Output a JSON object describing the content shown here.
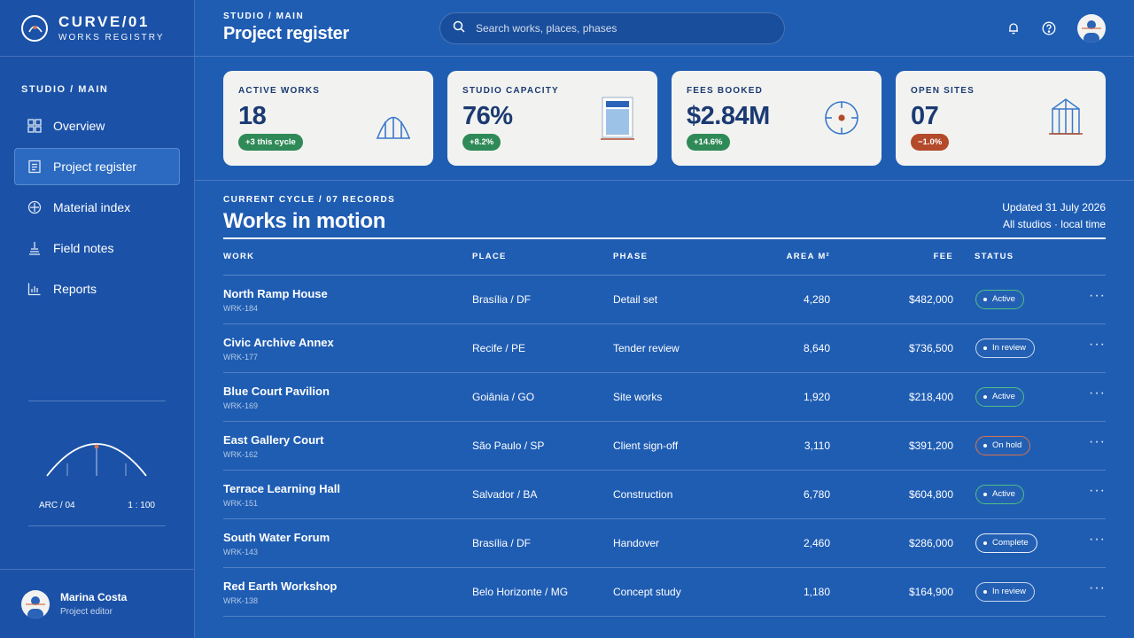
{
  "brand": {
    "title": "CURVE/01",
    "subtitle": "WORKS REGISTRY"
  },
  "sidebar": {
    "section": "STUDIO / MAIN",
    "items": [
      {
        "label": "Overview",
        "icon": "grid-icon"
      },
      {
        "label": "Project register",
        "icon": "document-icon",
        "active": true
      },
      {
        "label": "Material index",
        "icon": "crosshair-circle-icon"
      },
      {
        "label": "Field notes",
        "icon": "stack-icon"
      },
      {
        "label": "Reports",
        "icon": "bar-chart-icon"
      }
    ],
    "arc_widget": {
      "left_label": "ARC / 04",
      "right_label": "1 : 100"
    },
    "user": {
      "name": "Marina Costa",
      "role": "Project editor"
    }
  },
  "header": {
    "breadcrumb": "STUDIO / MAIN",
    "title": "Project register",
    "search_placeholder": "Search works, places, phases"
  },
  "kpis": [
    {
      "label": "ACTIVE WORKS",
      "value": "18",
      "delta": "+3 this cycle",
      "tone": "green",
      "graphic": "arch-icon"
    },
    {
      "label": "STUDIO CAPACITY",
      "value": "76%",
      "delta": "+8.2%",
      "tone": "green",
      "graphic": "capacity-gauge-icon",
      "level": 0.76
    },
    {
      "label": "FEES BOOKED",
      "value": "$2.84M",
      "delta": "+14.6%",
      "tone": "green",
      "graphic": "target-icon"
    },
    {
      "label": "OPEN SITES",
      "value": "07",
      "delta": "−1.0%",
      "tone": "red",
      "graphic": "tower-icon"
    }
  ],
  "works": {
    "kicker": "CURRENT CYCLE / 07 RECORDS",
    "title": "Works in motion",
    "updated": "Updated 31 July 2026",
    "scope": "All studios · local time",
    "columns": [
      "WORK",
      "PLACE",
      "PHASE",
      "AREA M²",
      "FEE",
      "STATUS"
    ],
    "rows": [
      {
        "name": "North Ramp House",
        "code": "WRK-184",
        "place": "Brasília / DF",
        "phase": "Detail set",
        "area": "4,280",
        "fee": "$482,000",
        "status": "Active",
        "tone": "active"
      },
      {
        "name": "Civic Archive Annex",
        "code": "WRK-177",
        "place": "Recife / PE",
        "phase": "Tender review",
        "area": "8,640",
        "fee": "$736,500",
        "status": "In review",
        "tone": "review"
      },
      {
        "name": "Blue Court Pavilion",
        "code": "WRK-169",
        "place": "Goiânia / GO",
        "phase": "Site works",
        "area": "1,920",
        "fee": "$218,400",
        "status": "Active",
        "tone": "active"
      },
      {
        "name": "East Gallery Court",
        "code": "WRK-162",
        "place": "São Paulo / SP",
        "phase": "Client sign-off",
        "area": "3,110",
        "fee": "$391,200",
        "status": "On hold",
        "tone": "hold"
      },
      {
        "name": "Terrace Learning Hall",
        "code": "WRK-151",
        "place": "Salvador / BA",
        "phase": "Construction",
        "area": "6,780",
        "fee": "$604,800",
        "status": "Active",
        "tone": "active"
      },
      {
        "name": "South Water Forum",
        "code": "WRK-143",
        "place": "Brasília / DF",
        "phase": "Handover",
        "area": "2,460",
        "fee": "$286,000",
        "status": "Complete",
        "tone": "complete"
      },
      {
        "name": "Red Earth Workshop",
        "code": "WRK-138",
        "place": "Belo Horizonte / MG",
        "phase": "Concept study",
        "area": "1,180",
        "fee": "$164,900",
        "status": "In review",
        "tone": "review"
      }
    ]
  },
  "colors": {
    "background": "#1f5db3",
    "sidebar": "#1b52a8",
    "card": "#f2f3f0",
    "ink": "#1b3a73",
    "accent_red": "#b34a2a",
    "accent_green": "#2f8a57"
  }
}
